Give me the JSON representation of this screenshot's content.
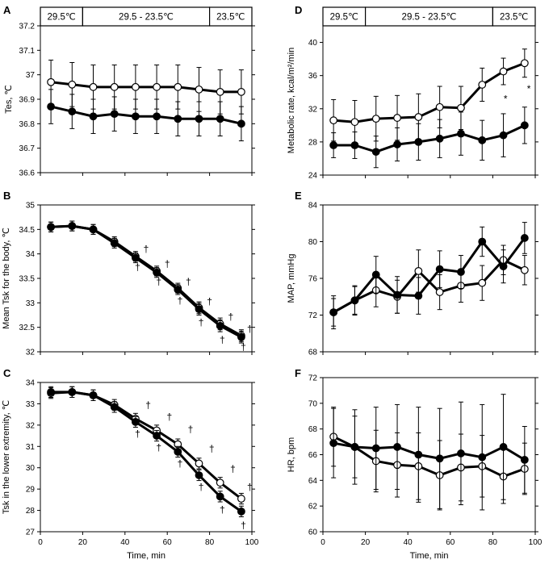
{
  "chart_data": [
    {
      "id": "A",
      "type": "line",
      "ylabel": "Tes, ℃",
      "ylim": [
        36.6,
        37.2
      ],
      "yticks": [
        36.6,
        36.7,
        36.8,
        36.9,
        37,
        37.1,
        37.2
      ],
      "ytick_labels": [
        "36.6",
        "36.7",
        "36.8",
        "36.9",
        "37",
        "37.1",
        "37.2"
      ],
      "xlim": [
        0,
        100
      ],
      "xticks": [
        0,
        20,
        40,
        60,
        80,
        100
      ],
      "xtick_labels": [],
      "temperature_bands": [
        "29.5℃",
        "29.5 - 23.5℃",
        "23.5℃"
      ],
      "x": [
        5,
        15,
        25,
        35,
        45,
        55,
        65,
        75,
        85,
        95
      ],
      "series": [
        {
          "name": "open",
          "marker": "open",
          "values": [
            36.97,
            36.96,
            36.95,
            36.95,
            36.95,
            36.95,
            36.95,
            36.94,
            36.93,
            36.93
          ],
          "errors": [
            0.09,
            0.09,
            0.09,
            0.09,
            0.09,
            0.09,
            0.09,
            0.09,
            0.09,
            0.09
          ]
        },
        {
          "name": "filled",
          "marker": "filled",
          "values": [
            36.87,
            36.85,
            36.83,
            36.84,
            36.83,
            36.83,
            36.82,
            36.82,
            36.82,
            36.8
          ],
          "errors": [
            0.07,
            0.07,
            0.07,
            0.07,
            0.07,
            0.07,
            0.07,
            0.07,
            0.07,
            0.07
          ]
        }
      ],
      "annotations": []
    },
    {
      "id": "B",
      "type": "line",
      "ylabel": "Mean Tsk for the body, ℃",
      "ylim": [
        32,
        35
      ],
      "yticks": [
        32,
        32.5,
        33,
        33.5,
        34,
        34.5,
        35
      ],
      "ytick_labels": [
        "32",
        "32.5",
        "33",
        "33.5",
        "34",
        "34.5",
        "35"
      ],
      "xlim": [
        0,
        100
      ],
      "xticks": [
        0,
        20,
        40,
        60,
        80,
        100
      ],
      "xtick_labels": [],
      "temperature_bands": [],
      "x": [
        5,
        15,
        25,
        35,
        45,
        55,
        65,
        75,
        85,
        95
      ],
      "series": [
        {
          "name": "open",
          "marker": "open",
          "values": [
            34.55,
            34.57,
            34.5,
            34.25,
            33.95,
            33.65,
            33.3,
            32.9,
            32.57,
            32.33
          ],
          "errors": [
            0.1,
            0.1,
            0.1,
            0.1,
            0.1,
            0.1,
            0.1,
            0.12,
            0.12,
            0.12
          ]
        },
        {
          "name": "filled",
          "marker": "filled",
          "values": [
            34.55,
            34.57,
            34.5,
            34.22,
            33.92,
            33.62,
            33.27,
            32.87,
            32.53,
            32.3
          ],
          "errors": [
            0.1,
            0.1,
            0.1,
            0.1,
            0.1,
            0.1,
            0.1,
            0.12,
            0.12,
            0.12
          ]
        }
      ],
      "annotations": [
        {
          "text": "†",
          "x": 46,
          "y": 33.73
        },
        {
          "text": "†",
          "x": 50,
          "y": 34.1
        },
        {
          "text": "†",
          "x": 56,
          "y": 33.43
        },
        {
          "text": "†",
          "x": 60,
          "y": 33.8
        },
        {
          "text": "†",
          "x": 66,
          "y": 33.05
        },
        {
          "text": "†",
          "x": 70,
          "y": 33.43
        },
        {
          "text": "†",
          "x": 76,
          "y": 32.6
        },
        {
          "text": "†",
          "x": 80,
          "y": 33.03
        },
        {
          "text": "†",
          "x": 86,
          "y": 32.25
        },
        {
          "text": "†",
          "x": 90,
          "y": 32.72
        },
        {
          "text": "†",
          "x": 96,
          "y": 32.1
        },
        {
          "text": "†",
          "x": 99,
          "y": 32.47
        }
      ]
    },
    {
      "id": "C",
      "type": "line",
      "ylabel": "Tsk in the lower extremity, ℃",
      "ylim": [
        27,
        34
      ],
      "yticks": [
        27,
        28,
        29,
        30,
        31,
        32,
        33,
        34
      ],
      "ytick_labels": [
        "27",
        "28",
        "29",
        "30",
        "31",
        "32",
        "33",
        "34"
      ],
      "xlim": [
        0,
        100
      ],
      "xticks": [
        0,
        20,
        40,
        60,
        80,
        100
      ],
      "xtick_labels": [
        "0",
        "20",
        "40",
        "60",
        "80",
        "100"
      ],
      "xlabel": "Time, min",
      "temperature_bands": [],
      "x": [
        5,
        15,
        25,
        35,
        45,
        55,
        65,
        75,
        85,
        95
      ],
      "series": [
        {
          "name": "open",
          "marker": "open",
          "values": [
            33.5,
            33.55,
            33.4,
            32.95,
            32.3,
            31.75,
            31.1,
            30.2,
            29.3,
            28.55
          ],
          "errors": [
            0.25,
            0.25,
            0.25,
            0.25,
            0.25,
            0.25,
            0.25,
            0.25,
            0.25,
            0.25
          ]
        },
        {
          "name": "filled",
          "marker": "filled",
          "values": [
            33.55,
            33.55,
            33.4,
            32.85,
            32.15,
            31.5,
            30.75,
            29.65,
            28.65,
            27.95
          ],
          "errors": [
            0.25,
            0.25,
            0.25,
            0.25,
            0.25,
            0.25,
            0.25,
            0.25,
            0.25,
            0.25
          ]
        }
      ],
      "annotations": [
        {
          "text": "†",
          "x": 46,
          "y": 31.6
        },
        {
          "text": "†",
          "x": 51,
          "y": 32.95
        },
        {
          "text": "†",
          "x": 56,
          "y": 30.95
        },
        {
          "text": "†",
          "x": 61,
          "y": 32.4
        },
        {
          "text": "†",
          "x": 66,
          "y": 30.2
        },
        {
          "text": "†",
          "x": 71,
          "y": 31.8
        },
        {
          "text": "†",
          "x": 76,
          "y": 29.1
        },
        {
          "text": "†",
          "x": 81,
          "y": 30.9
        },
        {
          "text": "†",
          "x": 86,
          "y": 28.05
        },
        {
          "text": "†",
          "x": 91,
          "y": 29.95
        },
        {
          "text": "†",
          "x": 96,
          "y": 27.3
        },
        {
          "text": "†",
          "x": 99,
          "y": 29.1
        }
      ]
    },
    {
      "id": "D",
      "type": "line",
      "ylabel": "Metabolic rate, kcal/m²/min",
      "ylim": [
        24,
        42
      ],
      "yticks": [
        24,
        28,
        32,
        36,
        40
      ],
      "ytick_labels": [
        "24",
        "28",
        "32",
        "36",
        "40"
      ],
      "xlim": [
        0,
        100
      ],
      "xticks": [
        0,
        20,
        40,
        60,
        80,
        100
      ],
      "xtick_labels": [],
      "temperature_bands": [
        "29.5℃",
        "29.5 - 23.5℃",
        "23.5℃"
      ],
      "x": [
        5,
        15,
        25,
        35,
        45,
        55,
        65,
        75,
        85,
        95
      ],
      "series": [
        {
          "name": "open",
          "marker": "open",
          "values": [
            30.6,
            30.4,
            30.8,
            30.9,
            31.0,
            32.2,
            32.1,
            34.9,
            36.5,
            37.5
          ],
          "errors": [
            2.5,
            2.6,
            2.7,
            2.7,
            2.8,
            2.5,
            2.6,
            2.0,
            1.6,
            1.7
          ]
        },
        {
          "name": "filled",
          "marker": "filled",
          "values": [
            27.6,
            27.6,
            26.8,
            27.7,
            28.0,
            28.4,
            29.0,
            28.2,
            28.8,
            30.0
          ],
          "errors": [
            1.5,
            1.6,
            1.9,
            2.0,
            2.2,
            2.3,
            2.6,
            2.4,
            2.6,
            2.2
          ]
        }
      ],
      "annotations": [
        {
          "text": "*",
          "x": 86,
          "y": 33.2
        },
        {
          "text": "*",
          "x": 97,
          "y": 34.4
        }
      ]
    },
    {
      "id": "E",
      "type": "line",
      "ylabel": "MAP, mmHg",
      "ylim": [
        68,
        84
      ],
      "yticks": [
        68,
        72,
        76,
        80,
        84
      ],
      "ytick_labels": [
        "68",
        "72",
        "76",
        "80",
        "84"
      ],
      "xlim": [
        0,
        100
      ],
      "xticks": [
        0,
        20,
        40,
        60,
        80,
        100
      ],
      "xtick_labels": [],
      "temperature_bands": [],
      "x": [
        5,
        15,
        25,
        35,
        45,
        55,
        65,
        75,
        85,
        95
      ],
      "series": [
        {
          "name": "open",
          "marker": "open",
          "values": [
            72.3,
            73.6,
            74.7,
            74.0,
            76.8,
            74.5,
            75.2,
            75.5,
            78.0,
            76.9
          ],
          "errors": [
            1.5,
            1.5,
            1.8,
            1.8,
            2.3,
            1.9,
            1.8,
            1.9,
            1.6,
            1.6
          ]
        },
        {
          "name": "filled",
          "marker": "filled",
          "values": [
            72.3,
            73.6,
            76.4,
            74.2,
            74.1,
            77.0,
            76.7,
            80.0,
            77.3,
            80.4
          ],
          "errors": [
            1.8,
            1.6,
            2.0,
            2.0,
            2.0,
            2.0,
            1.8,
            1.6,
            1.8,
            1.7
          ]
        }
      ],
      "annotations": []
    },
    {
      "id": "F",
      "type": "line",
      "ylabel": "HR, bpm",
      "ylim": [
        60,
        72
      ],
      "yticks": [
        60,
        62,
        64,
        66,
        68,
        70,
        72
      ],
      "ytick_labels": [
        "60",
        "62",
        "64",
        "66",
        "68",
        "70",
        "72"
      ],
      "xlim": [
        0,
        100
      ],
      "xticks": [
        0,
        20,
        40,
        60,
        80,
        100
      ],
      "xtick_labels": [
        "0",
        "20",
        "40",
        "60",
        "80",
        "100"
      ],
      "xlabel": "Time, min",
      "temperature_bands": [],
      "x": [
        5,
        15,
        25,
        35,
        45,
        55,
        65,
        75,
        85,
        95
      ],
      "series": [
        {
          "name": "open",
          "marker": "open",
          "values": [
            67.4,
            66.6,
            65.5,
            65.2,
            65.1,
            64.4,
            65.0,
            65.1,
            64.3,
            64.9
          ],
          "errors": [
            2.3,
            2.4,
            2.4,
            2.5,
            2.6,
            2.7,
            2.6,
            2.4,
            2.1,
            2.0
          ]
        },
        {
          "name": "filled",
          "marker": "filled",
          "values": [
            66.9,
            66.6,
            66.5,
            66.6,
            66.0,
            65.7,
            66.1,
            65.8,
            66.6,
            65.6
          ],
          "errors": [
            2.7,
            2.9,
            3.2,
            3.3,
            3.7,
            3.9,
            4.0,
            4.1,
            4.1,
            2.6
          ]
        }
      ],
      "annotations": []
    }
  ]
}
